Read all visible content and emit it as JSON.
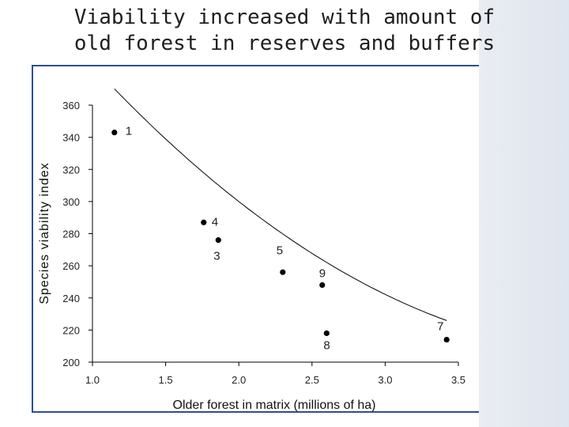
{
  "slide": {
    "title_line1": "Viability increased with amount of",
    "title_line2": "old forest in reserves and buffers"
  },
  "chart_data": {
    "type": "scatter",
    "title": "Viability increased with amount of old forest in reserves and buffers",
    "xlabel": "Older forest in matrix (millions of ha)",
    "ylabel": "Species viability index",
    "xlim": [
      1.0,
      3.5
    ],
    "ylim": [
      200,
      360
    ],
    "xticks": [
      "1.0",
      "1.5",
      "2.0",
      "2.5",
      "3.0",
      "3.5"
    ],
    "yticks": [
      "200",
      "220",
      "240",
      "260",
      "280",
      "300",
      "320",
      "340",
      "360"
    ],
    "grid": false,
    "points": [
      {
        "label": "1",
        "x": 1.15,
        "y": 343
      },
      {
        "label": "4",
        "x": 1.76,
        "y": 287
      },
      {
        "label": "3",
        "x": 1.86,
        "y": 276
      },
      {
        "label": "5",
        "x": 2.3,
        "y": 256
      },
      {
        "label": "9",
        "x": 2.57,
        "y": 248
      },
      {
        "label": "8",
        "x": 2.6,
        "y": 218
      },
      {
        "label": "7",
        "x": 3.42,
        "y": 214
      }
    ],
    "trendline": {
      "type": "quadratic",
      "coefficients": [
        13.4,
        -124.8,
        496.0
      ]
    }
  }
}
